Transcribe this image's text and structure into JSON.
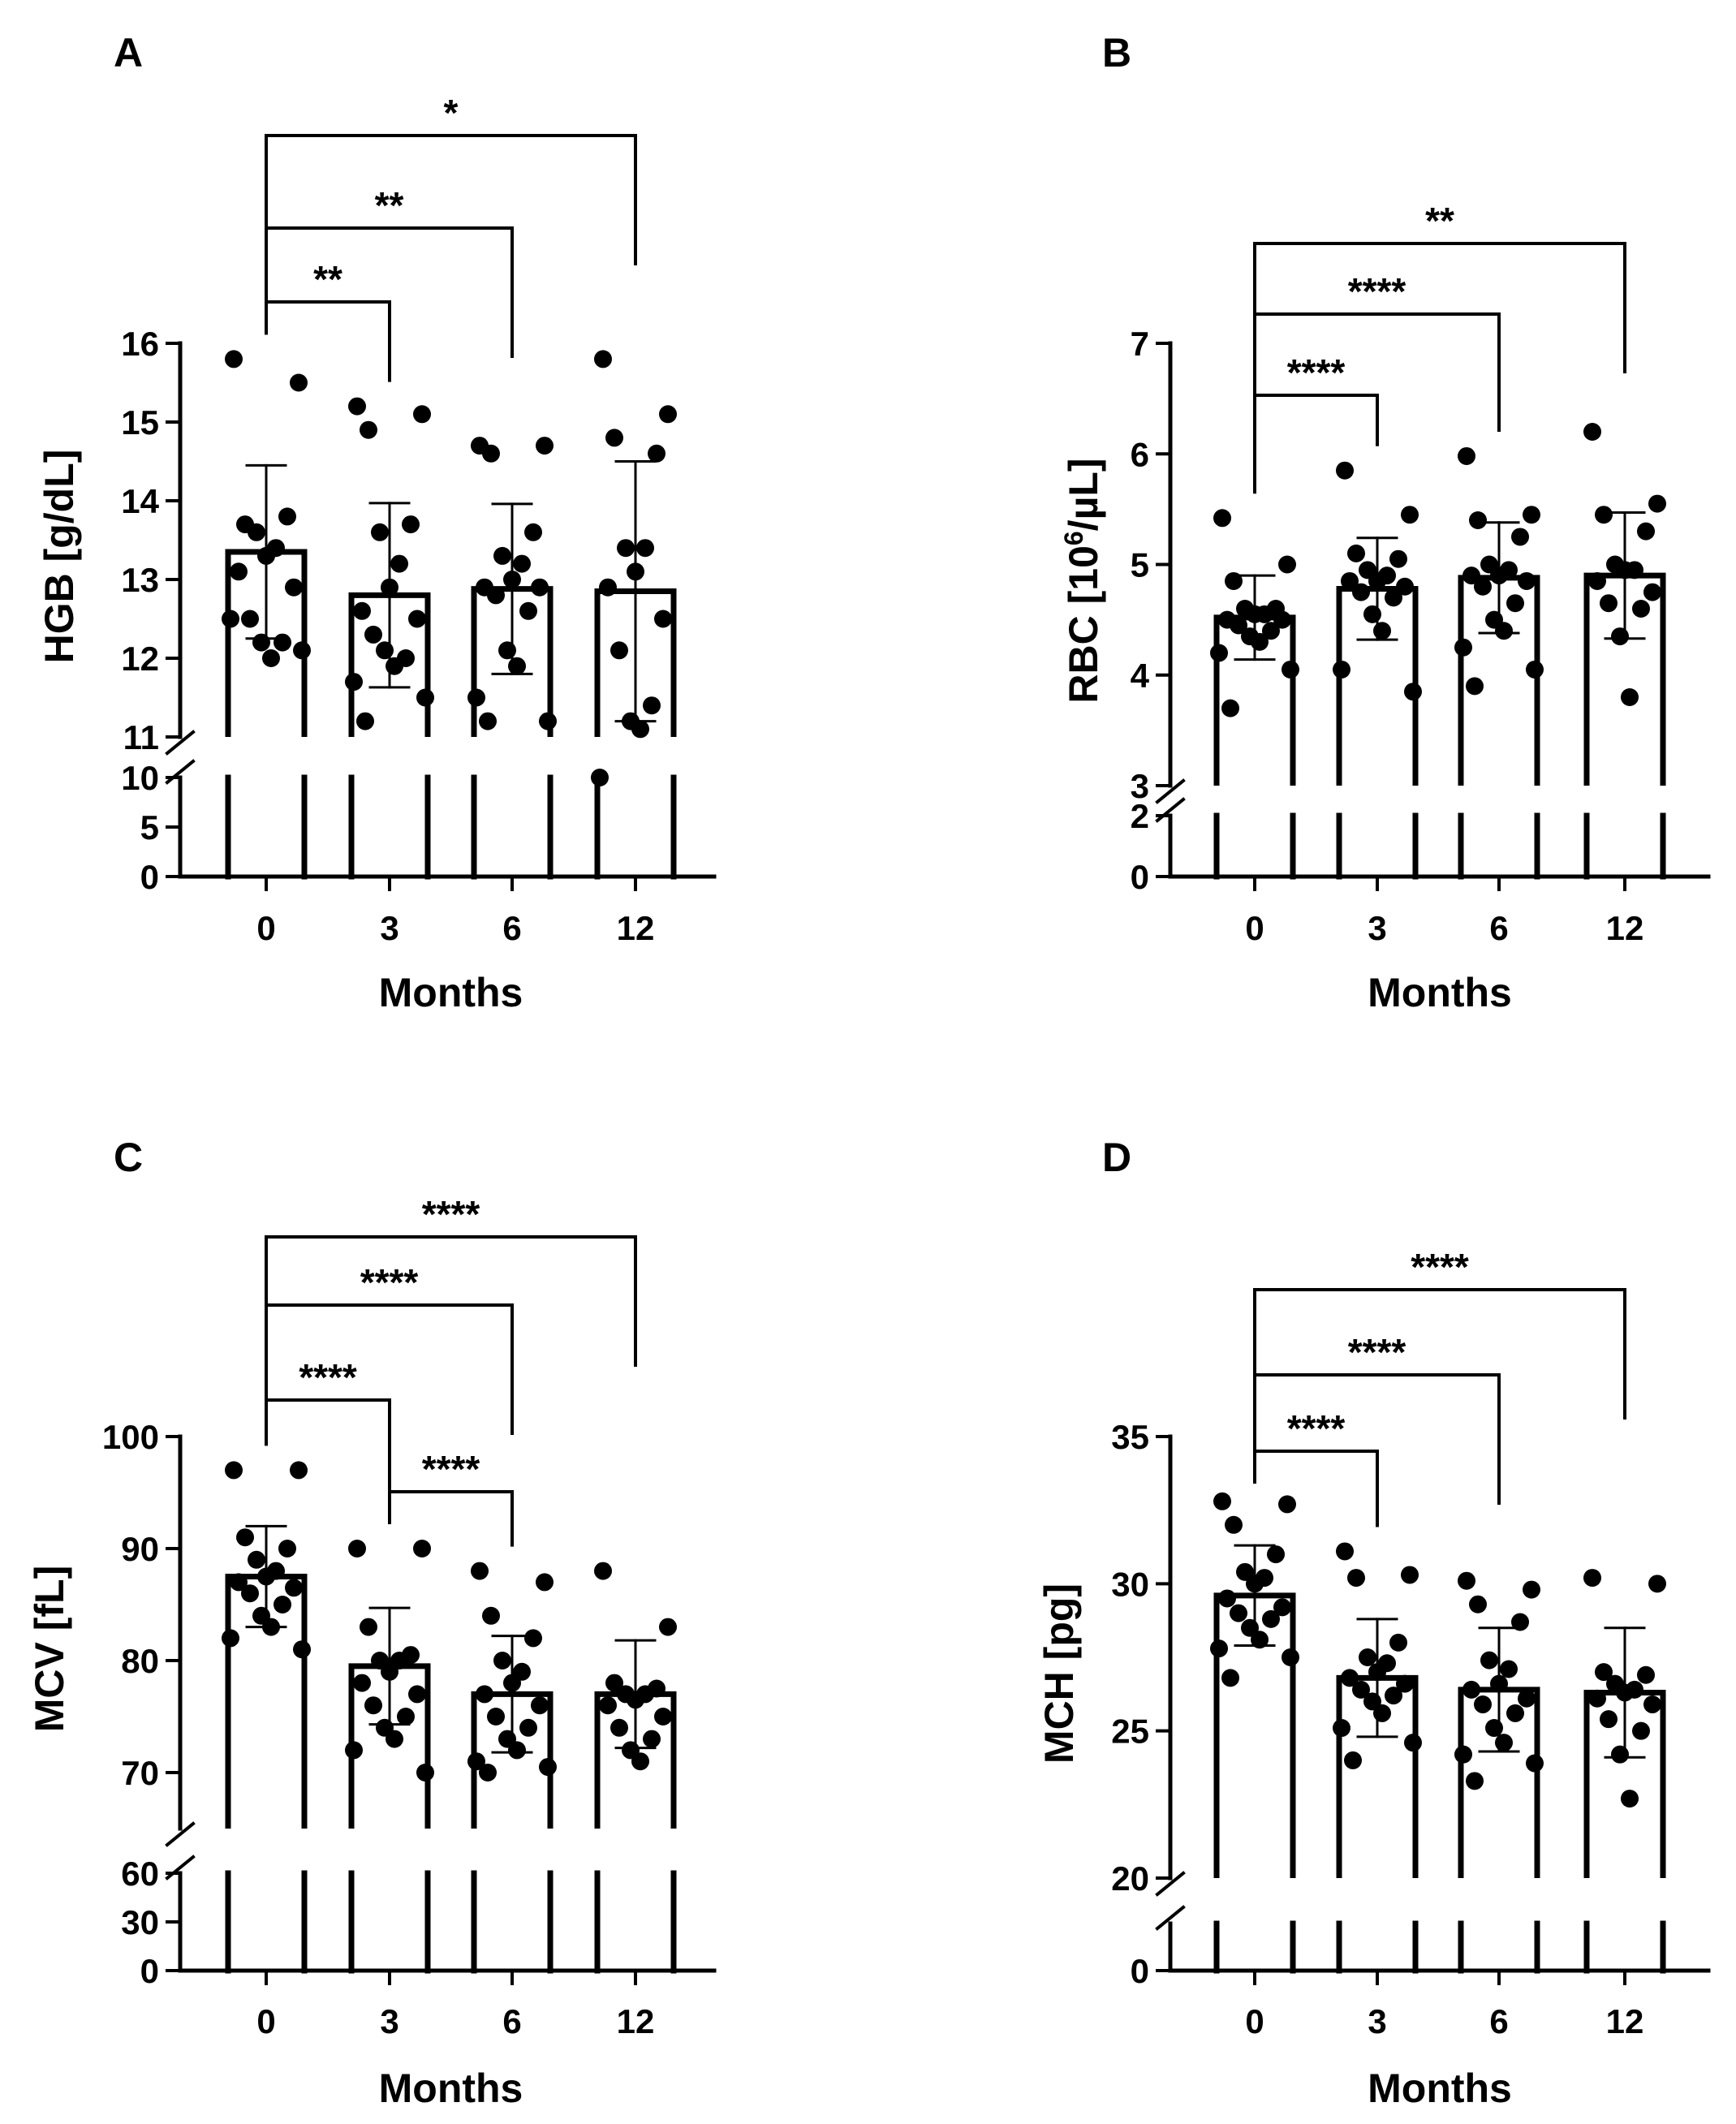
{
  "chart_data": [
    {
      "panel": "A",
      "type": "bar",
      "ylabel": "HGB [g/dL]",
      "xlabel": "Months",
      "categories": [
        "0",
        "3",
        "6",
        "12"
      ],
      "means": [
        13.35,
        12.8,
        12.88,
        12.85
      ],
      "sd": [
        1.1,
        1.17,
        1.08,
        1.65
      ],
      "points": [
        [
          15.8,
          15.5,
          13.7,
          13.8,
          13.6,
          13.4,
          13.3,
          13.1,
          12.9,
          12.5,
          12.2,
          12.2,
          12.0,
          12.5,
          12.1
        ],
        [
          15.2,
          15.1,
          14.9,
          13.7,
          13.6,
          13.2,
          12.9,
          12.6,
          12.5,
          12.3,
          12.0,
          12.1,
          11.9,
          11.7,
          11.5,
          11.2
        ],
        [
          14.7,
          14.7,
          14.6,
          13.6,
          13.3,
          13.2,
          13.0,
          12.9,
          12.9,
          12.8,
          12.6,
          12.1,
          11.9,
          11.5,
          11.2,
          11.2
        ],
        [
          15.8,
          15.1,
          14.8,
          14.6,
          13.4,
          13.4,
          13.1,
          12.9,
          12.5,
          12.1,
          11.4,
          11.2,
          11.1,
          10.0
        ]
      ],
      "y_upper": {
        "min": 11,
        "max": 16,
        "ticks": [
          "11",
          "12",
          "13",
          "14",
          "15",
          "16"
        ]
      },
      "y_lower": {
        "min": 0,
        "max": 10,
        "ticks": [
          "0",
          "5",
          "10"
        ]
      },
      "brackets": [
        {
          "from": "0",
          "to": "3",
          "label": "**"
        },
        {
          "from": "0",
          "to": "6",
          "label": "**"
        },
        {
          "from": "0",
          "to": "12",
          "label": "*"
        }
      ]
    },
    {
      "panel": "B",
      "type": "bar",
      "ylabel_main": "RBC [10",
      "ylabel_sup": "6",
      "ylabel_tail": "/µL]",
      "xlabel": "Months",
      "categories": [
        "0",
        "3",
        "6",
        "12"
      ],
      "means": [
        4.52,
        4.78,
        4.88,
        4.9
      ],
      "sd": [
        0.38,
        0.46,
        0.5,
        0.57
      ],
      "points": [
        [
          5.42,
          5.0,
          4.85,
          4.6,
          4.6,
          4.55,
          4.55,
          4.5,
          4.5,
          4.45,
          4.4,
          4.35,
          4.3,
          4.2,
          4.05,
          3.7
        ],
        [
          5.85,
          5.45,
          5.1,
          5.05,
          4.95,
          4.9,
          4.85,
          4.85,
          4.8,
          4.75,
          4.7,
          4.55,
          4.4,
          4.05,
          3.85
        ],
        [
          5.98,
          5.45,
          5.4,
          5.25,
          5.0,
          4.95,
          4.9,
          4.9,
          4.85,
          4.8,
          4.65,
          4.5,
          4.4,
          4.25,
          4.05,
          3.9
        ],
        [
          6.2,
          5.55,
          5.45,
          5.3,
          5.0,
          4.95,
          4.95,
          4.85,
          4.75,
          4.65,
          4.6,
          4.35,
          3.8
        ]
      ],
      "y_upper": {
        "min": 3,
        "max": 7,
        "ticks": [
          "3",
          "4",
          "5",
          "6",
          "7"
        ]
      },
      "y_lower": {
        "min": 0,
        "max": 2,
        "ticks": [
          "0",
          "2"
        ]
      },
      "brackets": [
        {
          "from": "0",
          "to": "3",
          "label": "****"
        },
        {
          "from": "0",
          "to": "6",
          "label": "****"
        },
        {
          "from": "0",
          "to": "12",
          "label": "**"
        }
      ]
    },
    {
      "panel": "C",
      "type": "bar",
      "ylabel": "MCV [fL]",
      "xlabel": "Months",
      "categories": [
        "0",
        "3",
        "6",
        "12"
      ],
      "means": [
        87.5,
        79.5,
        77.0,
        77.0
      ],
      "sd": [
        4.5,
        5.2,
        5.2,
        4.8
      ],
      "points": [
        [
          97,
          97,
          91,
          90,
          89,
          88,
          87.5,
          87,
          86.5,
          86,
          85,
          84,
          83,
          82,
          81
        ],
        [
          90,
          90,
          83,
          80.5,
          80,
          80,
          79,
          78,
          77,
          76,
          75,
          74,
          73,
          72,
          70
        ],
        [
          88,
          87,
          84,
          82,
          80,
          79,
          78,
          77,
          76,
          75,
          74,
          73,
          72,
          71,
          70.5,
          70
        ],
        [
          88,
          83,
          78,
          77.5,
          77,
          77,
          76.5,
          76,
          75,
          74,
          73,
          72,
          71
        ]
      ],
      "y_upper": {
        "min": 65,
        "max": 100,
        "ticks": [
          "70",
          "80",
          "90",
          "100"
        ]
      },
      "y_lower": {
        "min": 0,
        "max": 60,
        "ticks": [
          "0",
          "30",
          "60"
        ]
      },
      "brackets": [
        {
          "from": "0",
          "to": "3",
          "label": "****"
        },
        {
          "from": "3",
          "to": "6",
          "label": "****"
        },
        {
          "from": "0",
          "to": "6",
          "label": "****"
        },
        {
          "from": "0",
          "to": "12",
          "label": "****"
        }
      ]
    },
    {
      "panel": "D",
      "type": "bar",
      "ylabel": "MCH [pg]",
      "xlabel": "Months",
      "categories": [
        "0",
        "3",
        "6",
        "12"
      ],
      "means": [
        29.6,
        26.8,
        26.4,
        26.3
      ],
      "sd": [
        1.7,
        2.0,
        2.1,
        2.2
      ],
      "points": [
        [
          32.8,
          32.7,
          32.0,
          31.0,
          30.4,
          30.2,
          30.0,
          29.5,
          29.2,
          29.0,
          28.8,
          28.5,
          28.1,
          27.8,
          27.5,
          26.8
        ],
        [
          31.1,
          30.3,
          30.2,
          28.0,
          27.5,
          27.3,
          27.0,
          26.8,
          26.6,
          26.4,
          26.2,
          26.0,
          25.6,
          25.1,
          24.6,
          24.0
        ],
        [
          30.1,
          29.8,
          29.3,
          28.7,
          27.4,
          27.1,
          26.6,
          26.4,
          26.1,
          25.9,
          25.6,
          25.1,
          24.6,
          24.2,
          23.9,
          23.3
        ],
        [
          30.2,
          30.0,
          27.0,
          26.9,
          26.6,
          26.4,
          26.3,
          26.1,
          25.9,
          25.4,
          25.0,
          24.2,
          22.7
        ]
      ],
      "y_upper": {
        "min": 20,
        "max": 35,
        "ticks": [
          "20",
          "25",
          "30",
          "35"
        ]
      },
      "y_lower": {
        "min": 0,
        "max": 5,
        "ticks": [
          "0"
        ]
      },
      "brackets": [
        {
          "from": "0",
          "to": "3",
          "label": "****"
        },
        {
          "from": "0",
          "to": "6",
          "label": "****"
        },
        {
          "from": "0",
          "to": "12",
          "label": "****"
        }
      ]
    }
  ]
}
